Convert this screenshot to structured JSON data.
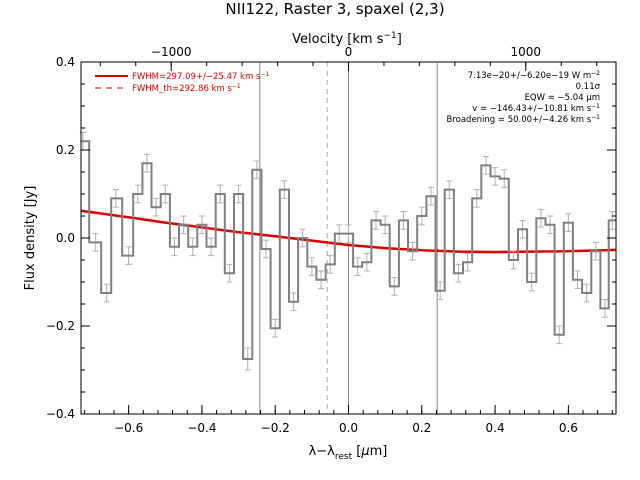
{
  "chart_data": {
    "type": "line",
    "title": "NII122, Raster 3, spaxel (2,3)",
    "xlabel_html": "λ−λrest [μm]",
    "xlabel_parts": {
      "main": "λ−λ",
      "sub": "rest",
      "unit_open": " [",
      "mu": "μ",
      "unit_close": "m]"
    },
    "ylabel": "Flux density [Jy]",
    "top_axis_label": "Velocity [km s−1]",
    "top_axis_label_parts": {
      "main": "Velocity [km s",
      "sup": "−1",
      "close": "]"
    },
    "xlim": [
      -0.73,
      0.73
    ],
    "ylim": [
      -0.4,
      0.4
    ],
    "x_ticks": [
      -0.6,
      -0.4,
      -0.2,
      0.0,
      0.2,
      0.4,
      0.6
    ],
    "x_tick_labels": [
      "−0.6",
      "−0.4",
      "−0.2",
      "0.0",
      "0.2",
      "0.4",
      "0.6"
    ],
    "y_ticks": [
      -0.4,
      -0.2,
      0.0,
      0.2,
      0.4
    ],
    "y_tick_labels": [
      "−0.4",
      "−0.2",
      "0.0",
      "0.2",
      "0.4"
    ],
    "top_ticks_wavelength": [
      -0.4838,
      0.0,
      0.4838
    ],
    "top_tick_labels": [
      "−1000",
      "0",
      "1000"
    ],
    "vertical_lines": [
      {
        "x": -0.242,
        "style": "solid",
        "color": "#888888"
      },
      {
        "x": 0.0,
        "style": "solid",
        "color": "#888888"
      },
      {
        "x": 0.242,
        "style": "solid",
        "color": "#888888"
      },
      {
        "x": -0.058,
        "style": "dashed",
        "color": "#aaaaaa"
      }
    ],
    "spectrum": {
      "name": "data",
      "color": "#808080",
      "bin_centers": [
        -0.725,
        -0.69,
        -0.66,
        -0.635,
        -0.6,
        -0.575,
        -0.55,
        -0.525,
        -0.5,
        -0.475,
        -0.45,
        -0.425,
        -0.4,
        -0.375,
        -0.35,
        -0.325,
        -0.3,
        -0.275,
        -0.25,
        -0.225,
        -0.2,
        -0.175,
        -0.15,
        -0.125,
        -0.1,
        -0.075,
        -0.05,
        -0.025,
        0.0,
        0.025,
        0.05,
        0.075,
        0.1,
        0.125,
        0.15,
        0.175,
        0.2,
        0.225,
        0.25,
        0.275,
        0.3,
        0.325,
        0.35,
        0.375,
        0.4,
        0.425,
        0.45,
        0.475,
        0.5,
        0.525,
        0.55,
        0.575,
        0.6,
        0.625,
        0.65,
        0.675,
        0.7,
        0.72
      ],
      "values": [
        0.22,
        -0.01,
        -0.125,
        0.09,
        -0.04,
        0.1,
        0.17,
        0.07,
        0.1,
        -0.02,
        0.03,
        -0.02,
        0.03,
        -0.02,
        0.1,
        -0.08,
        0.1,
        -0.275,
        0.155,
        -0.025,
        -0.205,
        0.11,
        -0.145,
        0.0,
        -0.065,
        -0.095,
        -0.06,
        0.01,
        0.01,
        -0.065,
        -0.055,
        0.04,
        0.03,
        -0.11,
        0.04,
        -0.03,
        0.05,
        0.095,
        -0.12,
        0.11,
        -0.08,
        -0.055,
        0.09,
        0.165,
        0.14,
        0.135,
        -0.05,
        0.02,
        -0.1,
        0.045,
        0.03,
        -0.22,
        0.035,
        -0.095,
        -0.125,
        -0.03,
        -0.16,
        0.04
      ],
      "errors": [
        0.02,
        0.02,
        0.02,
        0.02,
        0.02,
        0.02,
        0.02,
        0.02,
        0.02,
        0.02,
        0.02,
        0.02,
        0.02,
        0.02,
        0.02,
        0.02,
        0.02,
        0.025,
        0.02,
        0.02,
        0.02,
        0.02,
        0.02,
        0.02,
        0.02,
        0.02,
        0.02,
        0.02,
        0.02,
        0.02,
        0.02,
        0.02,
        0.02,
        0.02,
        0.02,
        0.02,
        0.02,
        0.02,
        0.02,
        0.02,
        0.02,
        0.02,
        0.02,
        0.02,
        0.02,
        0.02,
        0.02,
        0.02,
        0.02,
        0.02,
        0.02,
        0.02,
        0.02,
        0.02,
        0.02,
        0.02,
        0.02,
        0.02
      ]
    },
    "fit": {
      "name": "FWHM=297.09+/−25.47 km s−1",
      "color": "#e00000",
      "x": [
        -0.73,
        -0.6,
        -0.5,
        -0.4,
        -0.3,
        -0.2,
        -0.1,
        0.0,
        0.1,
        0.2,
        0.3,
        0.4,
        0.5,
        0.6,
        0.73
      ],
      "y": [
        0.062,
        0.047,
        0.035,
        0.024,
        0.013,
        0.004,
        -0.006,
        -0.016,
        -0.023,
        -0.028,
        -0.031,
        -0.032,
        -0.031,
        -0.03,
        -0.027
      ]
    },
    "legend": {
      "placement": "top-left",
      "entries": [
        {
          "label": "FWHM=297.09+/−25.47 km s",
          "sup": "−1",
          "style": "solid",
          "color": "#e00000"
        },
        {
          "label": "FWHM_th=292.86 km s",
          "sup": "−1",
          "style": "dashed",
          "color": "#e00000"
        }
      ]
    },
    "annotations": [
      {
        "text": "7.13e−20+/−6.20e−19 W m",
        "sup": "−2"
      },
      {
        "text": "0.11σ",
        "sup": ""
      },
      {
        "text": "EQW = −5.04 μm",
        "sup": ""
      },
      {
        "text": "v = −146.43+/−10.81 km s",
        "sup": "−1"
      },
      {
        "text": "Broadening = 50.00+/−4.26 km s",
        "sup": "−1"
      }
    ]
  }
}
